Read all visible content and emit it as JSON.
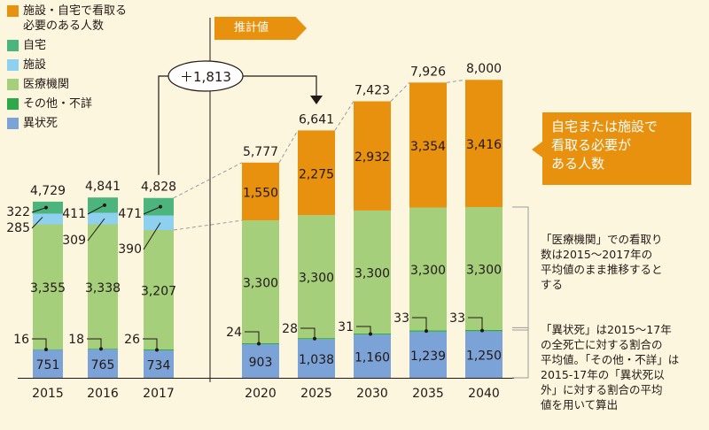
{
  "chart_data": {
    "type": "bar",
    "stacked": true,
    "categories": [
      "2015",
      "2016",
      "2017",
      "2020",
      "2025",
      "2030",
      "2035",
      "2040"
    ],
    "totals": [
      "4,729",
      "4,841",
      "4,828",
      "5,777",
      "6,641",
      "7,423",
      "7,926",
      "8,000"
    ],
    "series": [
      {
        "name": "異状死",
        "color": "#7ba3d7",
        "values": [
          751,
          765,
          734,
          903,
          1038,
          1160,
          1239,
          1250
        ],
        "labels": [
          "751",
          "765",
          "734",
          "903",
          "1,038",
          "1,160",
          "1,239",
          "1,250"
        ]
      },
      {
        "name": "その他・不詳",
        "color": "#2ea84a",
        "values": [
          16,
          18,
          26,
          24,
          28,
          31,
          33,
          33
        ],
        "labels": [
          "16",
          "18",
          "26",
          "24",
          "28",
          "31",
          "33",
          "33"
        ]
      },
      {
        "name": "医療機関",
        "color": "#a5cf7b",
        "values": [
          3355,
          3338,
          3207,
          3300,
          3300,
          3300,
          3300,
          3300
        ],
        "labels": [
          "3,355",
          "3,338",
          "3,207",
          "3,300",
          "3,300",
          "3,300",
          "3,300",
          "3,300"
        ]
      },
      {
        "name": "施設",
        "color": "#8dd0f0",
        "values": [
          285,
          309,
          390,
          0,
          0,
          0,
          0,
          0
        ],
        "labels": [
          "285",
          "309",
          "390",
          "",
          "",
          "",
          "",
          ""
        ]
      },
      {
        "name": "自宅",
        "color": "#4bb57d",
        "values": [
          322,
          411,
          471,
          0,
          0,
          0,
          0,
          0
        ],
        "labels": [
          "322",
          "411",
          "471",
          "",
          "",
          "",
          "",
          ""
        ]
      },
      {
        "name": "施設・自宅で看取る必要のある人数",
        "color": "#e8910f",
        "values": [
          0,
          0,
          0,
          1550,
          2275,
          2932,
          3354,
          3416
        ],
        "labels": [
          "",
          "",
          "",
          "1,550",
          "2,275",
          "2,932",
          "3,354",
          "3,416"
        ]
      }
    ],
    "ylim": [
      0,
      8000
    ]
  },
  "legend": [
    {
      "label": "施設・自宅で看取る\n必要のある人数",
      "color": "#e8910f"
    },
    {
      "label": "自宅",
      "color": "#4bb57d"
    },
    {
      "label": "施設",
      "color": "#8dd0f0"
    },
    {
      "label": "医療機関",
      "color": "#a5cf7b"
    },
    {
      "label": "その他・不詳",
      "color": "#2ea84a"
    },
    {
      "label": "異状死",
      "color": "#7ba3d7"
    }
  ],
  "projection_label": "推計値",
  "increase_label": "＋1,813",
  "callout": "自宅または施設で\n看取る必要が\nある人数",
  "note_medical": "「医療機関」での看取り\n数は2015～2017年の\n平均値のまま推移すると\nする",
  "note_abnormal": "「異状死」は2015～17年\nの全死亡に対する割合の\n平均値。「その他・不詳」は\n2015-17年の「異状死以\n外」に対する割合の平均\n値を用いて算出"
}
